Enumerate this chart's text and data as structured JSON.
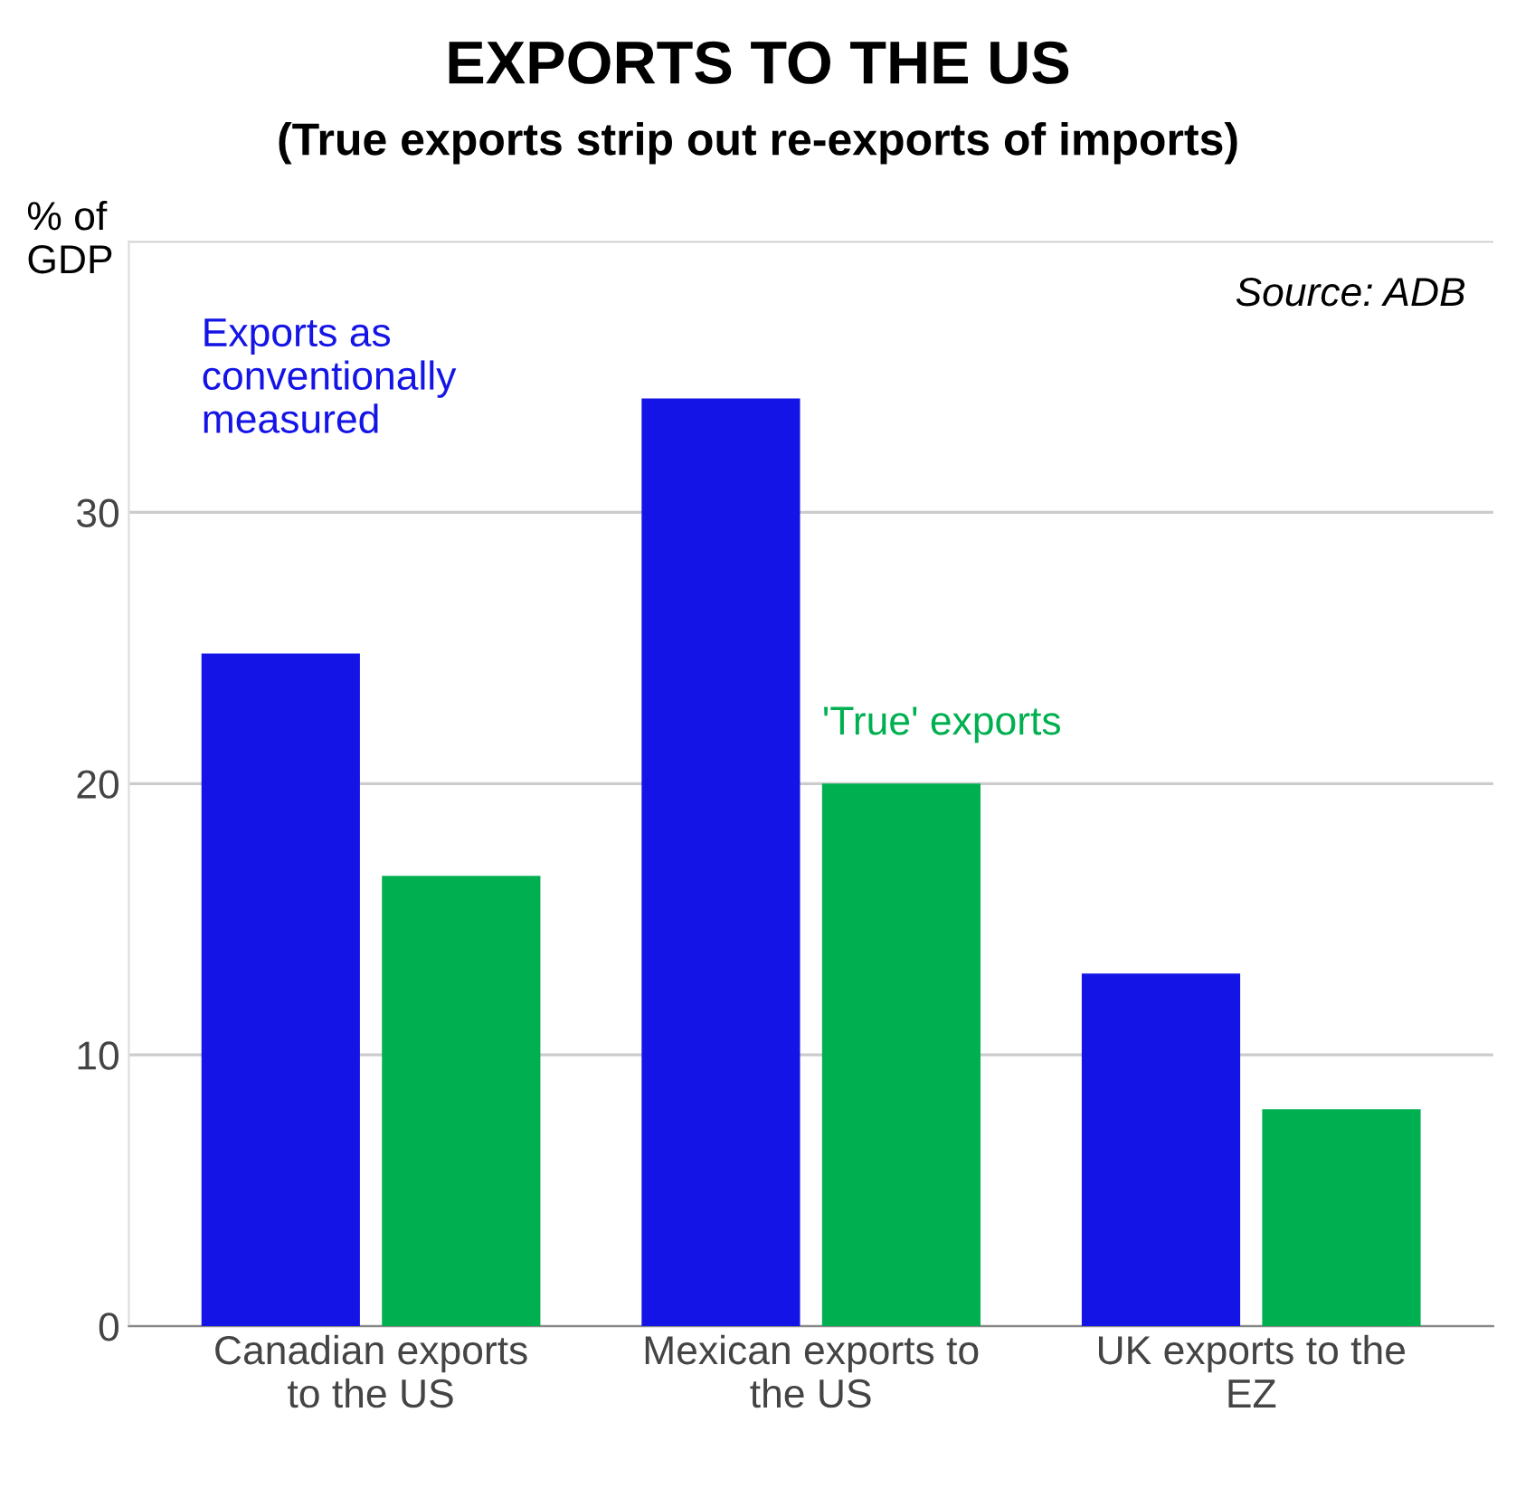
{
  "chart_data": {
    "type": "bar",
    "title": "EXPORTS TO THE US",
    "subtitle": "(True exports strip out re-exports of imports)",
    "ylabel": "% of\nGDP",
    "categories": [
      "Canadian exports\nto the US",
      "Mexican exports to\nthe US",
      "UK exports to the\nEZ"
    ],
    "series": [
      {
        "name": "Exports as\nconventionally\nmeasured",
        "color": "#1414e6",
        "values": [
          24.8,
          34.2,
          13.0
        ]
      },
      {
        "name": "'True' exports",
        "color": "#00b050",
        "values": [
          16.6,
          20.0,
          8.0
        ]
      }
    ],
    "ylim": [
      0,
      40
    ],
    "yticks": [
      0,
      10,
      20,
      30,
      {
        "value": 40,
        "label": null
      }
    ],
    "grid": "y",
    "legend": false,
    "annotations": [
      "Source: ADB"
    ]
  }
}
